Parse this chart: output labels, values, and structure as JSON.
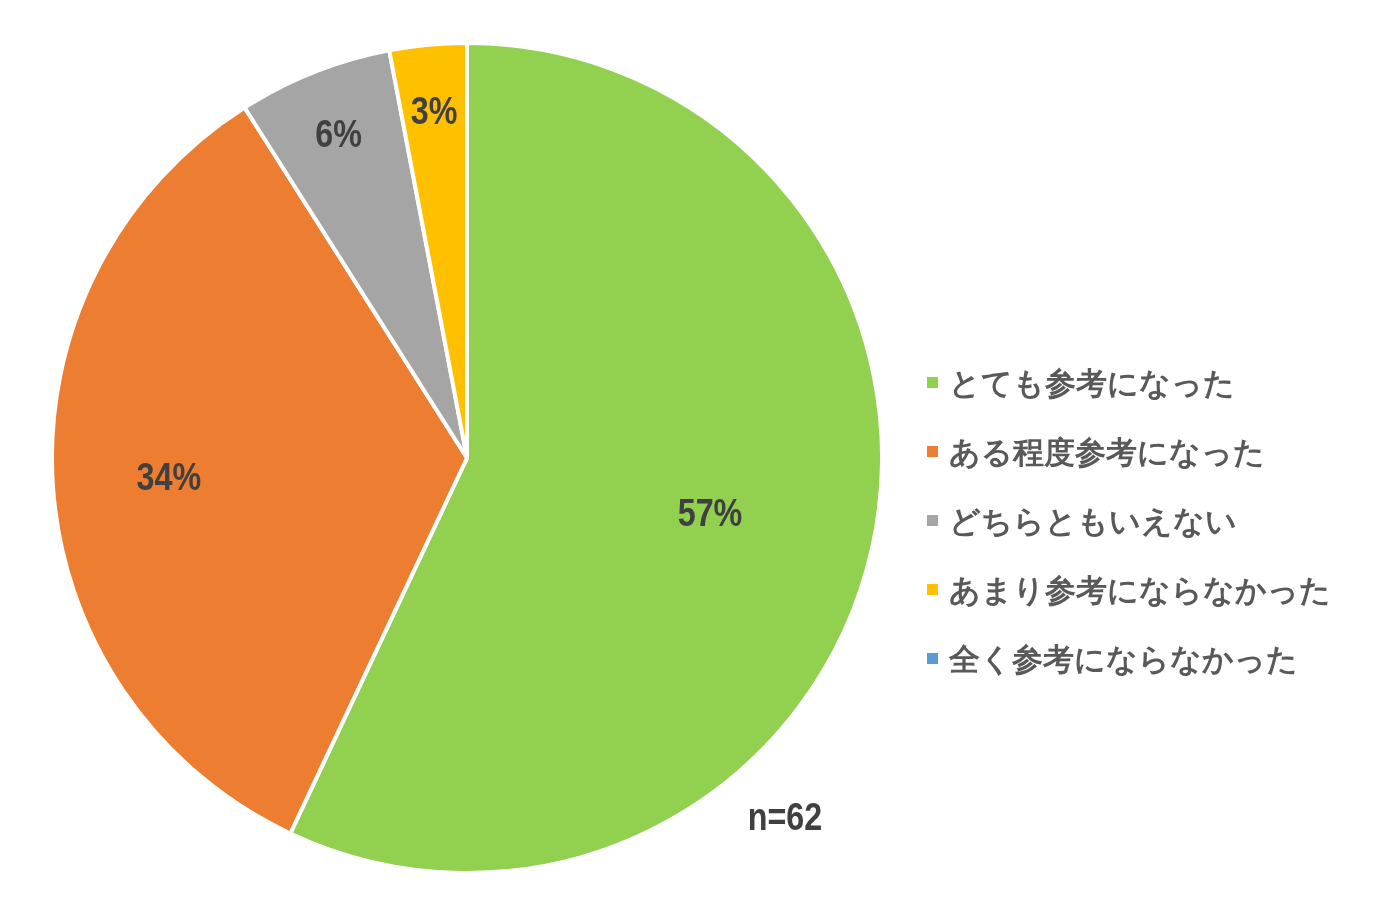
{
  "chart_data": {
    "type": "pie",
    "categories": [
      "とても参考になった",
      "ある程度参考になった",
      "どちらともいえない",
      "あまり参考にならなかった",
      "全く参考にならなかった"
    ],
    "values": [
      57,
      34,
      6,
      3,
      0
    ],
    "colors": [
      "#92d050",
      "#ed7d31",
      "#a5a5a5",
      "#ffc000",
      "#5b9bd5"
    ],
    "value_labels": [
      "57%",
      "34%",
      "6%",
      "3%",
      null
    ],
    "legend": "right",
    "annotations": [
      "n=62"
    ]
  }
}
